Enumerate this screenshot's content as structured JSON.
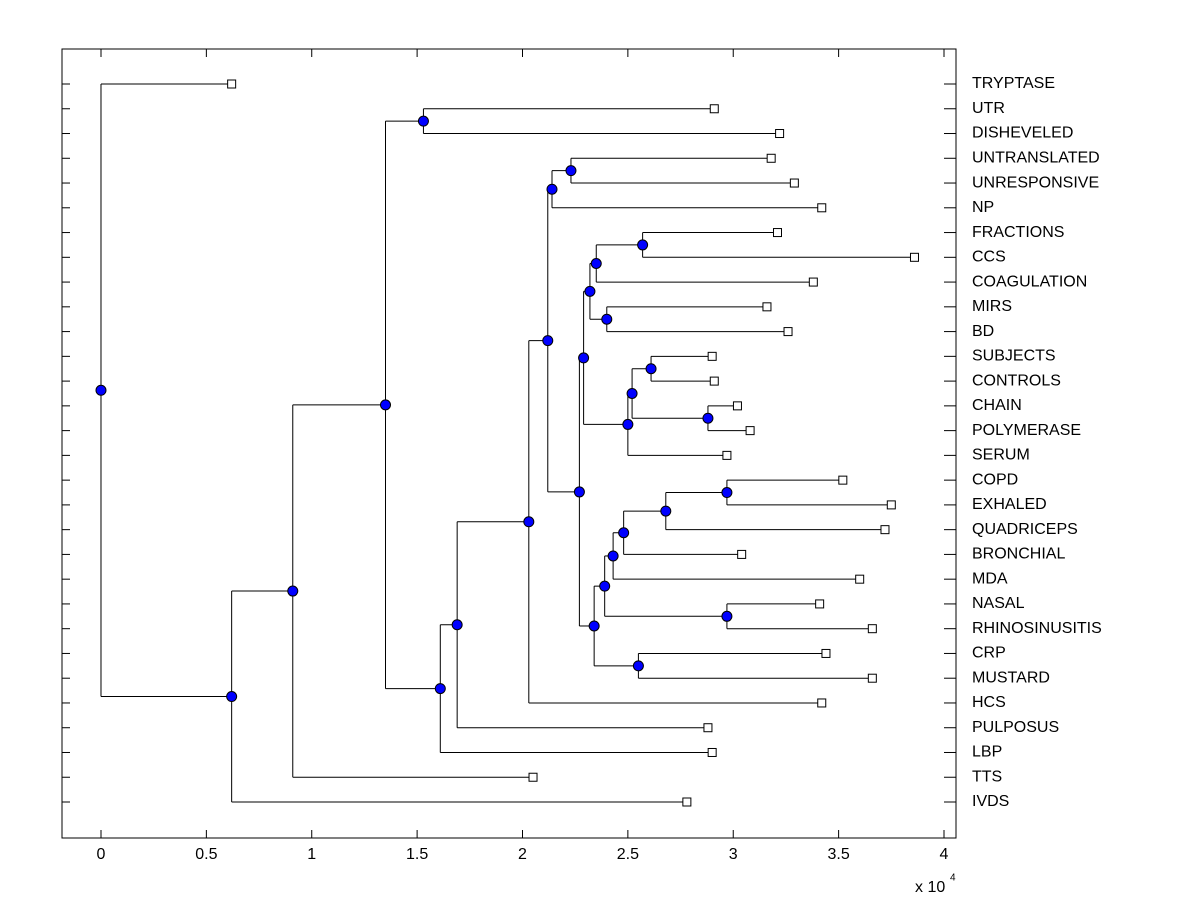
{
  "chart_data": {
    "type": "dendrogram",
    "xlim": [
      -0.185,
      4.057
    ],
    "xticks": [
      0,
      0.5,
      1,
      1.5,
      2,
      2.5,
      3,
      3.5,
      4
    ],
    "x_scale_label": "x 10",
    "x_scale_exponent": "4",
    "node_color": "#0000ff",
    "leaf_color": "#ffffff",
    "tree": {
      "value": 0,
      "children": [
        {
          "label": "TRYPTASE",
          "value": 0.62
        },
        {
          "value": 0.62,
          "children": [
            {
              "value": 0.91,
              "children": [
                {
                  "value": 1.35,
                  "children": [
                    {
                      "value": 1.53,
                      "children": [
                        {
                          "label": "UTR",
                          "value": 2.91
                        },
                        {
                          "label": "DISHEVELED",
                          "value": 3.22
                        }
                      ]
                    },
                    {
                      "value": 1.61,
                      "children": [
                        {
                          "value": 1.69,
                          "children": [
                            {
                              "value": 2.03,
                              "children": [
                                {
                                  "value": 2.12,
                                  "children": [
                                    {
                                      "value": 2.14,
                                      "children": [
                                        {
                                          "value": 2.23,
                                          "children": [
                                            {
                                              "label": "UNTRANSLATED",
                                              "value": 3.18
                                            },
                                            {
                                              "label": "UNRESPONSIVE",
                                              "value": 3.29
                                            }
                                          ]
                                        },
                                        {
                                          "label": "NP",
                                          "value": 3.42
                                        }
                                      ]
                                    },
                                    {
                                      "value": 2.27,
                                      "children": [
                                        {
                                          "value": 2.29,
                                          "children": [
                                            {
                                              "value": 2.32,
                                              "children": [
                                                {
                                                  "value": 2.35,
                                                  "children": [
                                                    {
                                                      "value": 2.57,
                                                      "children": [
                                                        {
                                                          "label": "FRACTIONS",
                                                          "value": 3.21
                                                        },
                                                        {
                                                          "label": "CCS",
                                                          "value": 3.86
                                                        }
                                                      ]
                                                    },
                                                    {
                                                      "label": "COAGULATION",
                                                      "value": 3.38
                                                    }
                                                  ]
                                                },
                                                {
                                                  "value": 2.4,
                                                  "children": [
                                                    {
                                                      "label": "MIRS",
                                                      "value": 3.16
                                                    },
                                                    {
                                                      "label": "BD",
                                                      "value": 3.26
                                                    }
                                                  ]
                                                }
                                              ]
                                            },
                                            {
                                              "value": 2.5,
                                              "children": [
                                                {
                                                  "value": 2.52,
                                                  "children": [
                                                    {
                                                      "value": 2.61,
                                                      "children": [
                                                        {
                                                          "label": "SUBJECTS",
                                                          "value": 2.9
                                                        },
                                                        {
                                                          "label": "CONTROLS",
                                                          "value": 2.91
                                                        }
                                                      ]
                                                    },
                                                    {
                                                      "value": 2.88,
                                                      "children": [
                                                        {
                                                          "label": "CHAIN",
                                                          "value": 3.02
                                                        },
                                                        {
                                                          "label": "POLYMERASE",
                                                          "value": 3.08
                                                        }
                                                      ]
                                                    }
                                                  ]
                                                },
                                                {
                                                  "label": "SERUM",
                                                  "value": 2.97
                                                }
                                              ]
                                            }
                                          ]
                                        },
                                        {
                                          "value": 2.34,
                                          "children": [
                                            {
                                              "value": 2.39,
                                              "children": [
                                                {
                                                  "value": 2.43,
                                                  "children": [
                                                    {
                                                      "value": 2.48,
                                                      "children": [
                                                        {
                                                          "value": 2.68,
                                                          "children": [
                                                            {
                                                              "value": 2.97,
                                                              "children": [
                                                                {
                                                                  "label": "COPD",
                                                                  "value": 3.52
                                                                },
                                                                {
                                                                  "label": "EXHALED",
                                                                  "value": 3.75
                                                                }
                                                              ]
                                                            },
                                                            {
                                                              "label": "QUADRICEPS",
                                                              "value": 3.72
                                                            }
                                                          ]
                                                        },
                                                        {
                                                          "label": "BRONCHIAL",
                                                          "value": 3.04
                                                        }
                                                      ]
                                                    },
                                                    {
                                                      "label": "MDA",
                                                      "value": 3.6
                                                    }
                                                  ]
                                                },
                                                {
                                                  "value": 2.97,
                                                  "children": [
                                                    {
                                                      "label": "NASAL",
                                                      "value": 3.41
                                                    },
                                                    {
                                                      "label": "RHINOSINUSITIS",
                                                      "value": 3.66
                                                    }
                                                  ]
                                                }
                                              ]
                                            },
                                            {
                                              "value": 2.55,
                                              "children": [
                                                {
                                                  "label": "CRP",
                                                  "value": 3.44
                                                },
                                                {
                                                  "label": "MUSTARD",
                                                  "value": 3.66
                                                }
                                              ]
                                            }
                                          ]
                                        }
                                      ]
                                    }
                                  ]
                                },
                                {
                                  "label": "HCS",
                                  "value": 3.42
                                }
                              ]
                            },
                            {
                              "label": "PULPOSUS",
                              "value": 2.88
                            }
                          ]
                        },
                        {
                          "label": "LBP",
                          "value": 2.9
                        }
                      ]
                    }
                  ]
                },
                {
                  "label": "TTS",
                  "value": 2.05
                }
              ]
            },
            {
              "label": "IVDS",
              "value": 2.78
            }
          ]
        }
      ]
    }
  }
}
